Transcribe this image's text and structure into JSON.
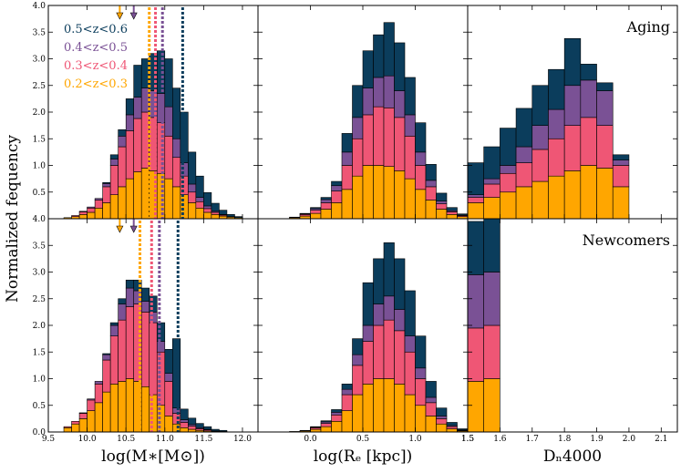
{
  "chart_data": {
    "type": "bar",
    "layout": "2x3 grid of stacked histograms",
    "colors": {
      "0.5<z<0.6": "#0b3d5c",
      "0.4<z<0.5": "#7a5195",
      "0.3<z<0.4": "#ef5675",
      "0.2<z<0.3": "#ffa600"
    },
    "legend": {
      "placement": "top-left",
      "entries": [
        "0.5<z<0.6",
        "0.4<z<0.5",
        "0.3<z<0.4",
        "0.2<z<0.3"
      ]
    },
    "ylabel": "Normalized fequency",
    "ylim": [
      0,
      4.0
    ],
    "yticks": [
      "0.0",
      "0.5",
      "1.0",
      "1.5",
      "2.0",
      "2.5",
      "3.0",
      "3.5",
      "4.0"
    ],
    "columns": [
      {
        "xlabel": "log(M∗[M⊙])",
        "xlim": [
          9.5,
          12.2
        ],
        "xticks": [
          "9.5",
          "10.0",
          "10.5",
          "11.0",
          "11.5",
          "12.0"
        ],
        "bin_width": 0.1
      },
      {
        "xlabel": "log(Rₑ [kpc])",
        "xlim": [
          -0.5,
          1.5
        ],
        "xticks": [
          "0.0",
          "0.5",
          "1.0",
          "1.5"
        ],
        "bin_width": 0.1
      },
      {
        "xlabel": "Dₙ4000",
        "xlim": [
          1.5,
          2.15
        ],
        "xticks": [
          "1.5",
          "1.6",
          "1.7",
          "1.8",
          "1.9",
          "2.0",
          "2.1"
        ],
        "bin_width": 0.05
      }
    ],
    "rows": [
      {
        "label": "Aging",
        "mass_medians": [
          10.8,
          10.88,
          10.97,
          11.23
        ],
        "mass_arrows": [
          10.42,
          10.6
        ],
        "panels": [
          {
            "bin_starts": [
              9.7,
              9.8,
              9.9,
              10.0,
              10.1,
              10.2,
              10.3,
              10.4,
              10.5,
              10.6,
              10.7,
              10.8,
              10.9,
              11.0,
              11.1,
              11.2,
              11.3,
              11.4,
              11.5,
              11.6,
              11.7,
              11.8,
              11.9
            ],
            "stacks": [
              [
                0.02,
                0.04,
                0.08,
                0.12,
                0.2,
                0.3,
                0.45,
                0.6,
                0.75,
                0.88,
                0.95,
                0.9,
                0.85,
                0.75,
                0.6,
                0.45,
                0.3,
                0.2,
                0.12,
                0.08,
                0.05,
                0.03,
                0.02
              ],
              [
                0,
                0.02,
                0.05,
                0.08,
                0.15,
                0.3,
                0.55,
                0.75,
                0.9,
                1.0,
                1.05,
                1.0,
                0.95,
                0.8,
                0.55,
                0.35,
                0.2,
                0.12,
                0.07,
                0.04,
                0.02,
                0.01,
                0
              ],
              [
                0,
                0,
                0.01,
                0.02,
                0.03,
                0.06,
                0.12,
                0.2,
                0.3,
                0.4,
                0.45,
                0.5,
                0.55,
                0.55,
                0.35,
                0.25,
                0.15,
                0.08,
                0.05,
                0.02,
                0.01,
                0,
                0
              ],
              [
                0,
                0,
                0,
                0,
                0,
                0.02,
                0.08,
                0.12,
                0.3,
                0.6,
                0.55,
                0.7,
                0.8,
                0.9,
                0.95,
                0.95,
                0.6,
                0.4,
                0.25,
                0.15,
                0.08,
                0.04,
                0.02
              ]
            ]
          },
          {
            "bin_starts": [
              -0.2,
              -0.1,
              0.0,
              0.1,
              0.2,
              0.3,
              0.4,
              0.5,
              0.6,
              0.7,
              0.8,
              0.9,
              1.0,
              1.1,
              1.2,
              1.3,
              1.4
            ],
            "stacks": [
              [
                0.02,
                0.05,
                0.1,
                0.18,
                0.3,
                0.55,
                0.8,
                1.0,
                1.0,
                0.98,
                0.9,
                0.75,
                0.55,
                0.35,
                0.18,
                0.08,
                0.04
              ],
              [
                0.01,
                0.03,
                0.06,
                0.12,
                0.22,
                0.45,
                0.7,
                0.95,
                1.1,
                1.1,
                1.0,
                0.8,
                0.45,
                0.25,
                0.1,
                0.05,
                0.02
              ],
              [
                0,
                0.01,
                0.03,
                0.06,
                0.1,
                0.25,
                0.4,
                0.5,
                0.55,
                0.6,
                0.5,
                0.4,
                0.25,
                0.12,
                0.05,
                0.02,
                0.01
              ],
              [
                0,
                0.01,
                0.02,
                0.04,
                0.08,
                0.35,
                0.6,
                0.7,
                0.8,
                1.0,
                0.9,
                0.7,
                0.55,
                0.3,
                0.15,
                0.06,
                0.02
              ]
            ]
          },
          {
            "bin_starts": [
              1.5,
              1.55,
              1.6,
              1.65,
              1.7,
              1.75,
              1.8,
              1.85,
              1.9,
              1.95
            ],
            "stacks": [
              [
                0.3,
                0.4,
                0.5,
                0.6,
                0.7,
                0.8,
                0.9,
                1.0,
                0.95,
                0.6
              ],
              [
                0.1,
                0.25,
                0.35,
                0.45,
                0.6,
                0.7,
                0.85,
                0.9,
                0.8,
                0.4
              ],
              [
                0.05,
                0.1,
                0.15,
                0.3,
                0.45,
                0.55,
                0.75,
                0.7,
                0.65,
                0.1
              ],
              [
                0.6,
                0.6,
                0.7,
                0.72,
                0.75,
                0.75,
                0.88,
                0.3,
                0.15,
                0.1
              ]
            ]
          }
        ]
      },
      {
        "label": "Newcomers",
        "mass_medians": [
          10.68,
          10.83,
          10.93,
          11.17
        ],
        "mass_arrows": [
          10.42,
          10.6
        ],
        "panels": [
          {
            "bin_starts": [
              9.7,
              9.8,
              9.9,
              10.0,
              10.1,
              10.2,
              10.3,
              10.4,
              10.5,
              10.6,
              10.7,
              10.8,
              10.9,
              11.0,
              11.1,
              11.2,
              11.3,
              11.4,
              11.5,
              11.6,
              11.7
            ],
            "stacks": [
              [
                0.08,
                0.15,
                0.25,
                0.4,
                0.55,
                0.75,
                0.9,
                0.95,
                1.0,
                0.95,
                0.85,
                0.7,
                0.5,
                0.3,
                0.15,
                0.08,
                0.05,
                0.03,
                0.02,
                0.01,
                0.01
              ],
              [
                0.02,
                0.05,
                0.1,
                0.2,
                0.35,
                0.6,
                0.9,
                1.15,
                1.35,
                1.45,
                1.4,
                1.35,
                1.0,
                0.65,
                0.2,
                0.1,
                0.06,
                0.03,
                0.02,
                0.01,
                0
              ],
              [
                0,
                0,
                0.01,
                0.02,
                0.05,
                0.1,
                0.2,
                0.3,
                0.35,
                0.25,
                0.2,
                0.2,
                0.2,
                0.15,
                0.1,
                0.05,
                0.03,
                0.02,
                0.01,
                0,
                0
              ],
              [
                0,
                0,
                0,
                0,
                0,
                0.02,
                0.05,
                0.1,
                0.15,
                0.2,
                0.25,
                0.3,
                0.35,
                0.45,
                1.3,
                0.2,
                0.12,
                0.08,
                0.05,
                0.03,
                0.02
              ]
            ]
          },
          {
            "bin_starts": [
              -0.2,
              -0.1,
              0.0,
              0.1,
              0.2,
              0.3,
              0.4,
              0.5,
              0.6,
              0.7,
              0.8,
              0.9,
              1.0,
              1.1,
              1.2,
              1.3,
              1.4
            ],
            "stacks": [
              [
                0.01,
                0.02,
                0.05,
                0.1,
                0.2,
                0.4,
                0.7,
                0.9,
                1.0,
                1.0,
                0.9,
                0.7,
                0.5,
                0.3,
                0.15,
                0.06,
                0.02
              ],
              [
                0,
                0.01,
                0.03,
                0.06,
                0.12,
                0.3,
                0.55,
                0.8,
                1.0,
                1.1,
                1.0,
                0.8,
                0.5,
                0.25,
                0.1,
                0.04,
                0.01
              ],
              [
                0,
                0,
                0.01,
                0.03,
                0.05,
                0.1,
                0.2,
                0.3,
                0.4,
                0.45,
                0.4,
                0.3,
                0.2,
                0.1,
                0.05,
                0.02,
                0.01
              ],
              [
                0,
                0,
                0.01,
                0.02,
                0.05,
                0.1,
                0.3,
                0.8,
                0.85,
                1.0,
                0.95,
                0.85,
                0.6,
                0.3,
                0.15,
                0.06,
                0.02
              ]
            ]
          },
          {
            "bin_starts": [
              1.5,
              1.55
            ],
            "stacks": [
              [
                0.95,
                1.0
              ],
              [
                1.0,
                1.0
              ],
              [
                1.0,
                1.0
              ],
              [
                1.0,
                1.0
              ]
            ]
          }
        ]
      }
    ]
  }
}
